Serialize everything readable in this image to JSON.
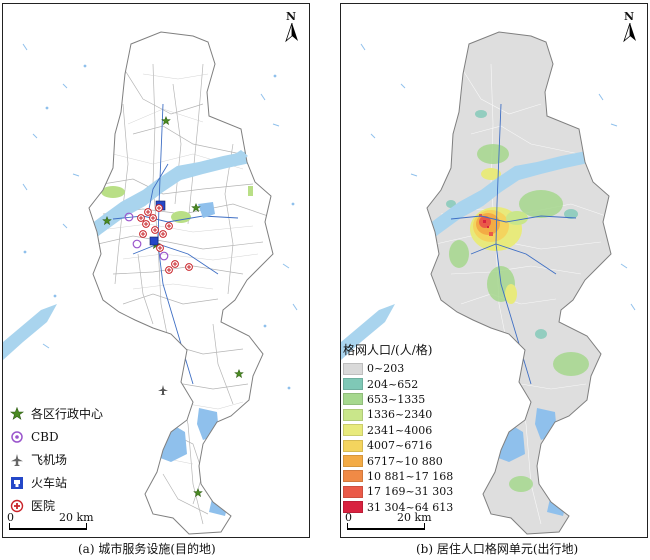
{
  "north_label": "N",
  "panel_a": {
    "caption": "(a) 城市服务设施(目的地)",
    "legend": [
      {
        "label": "各区行政中心",
        "icon": "star-icon",
        "color": "#4a8a22"
      },
      {
        "label": "CBD",
        "icon": "cbd-circle-icon",
        "color": "#9a55cc"
      },
      {
        "label": "飞机场",
        "icon": "airplane-icon",
        "color": "#666666"
      },
      {
        "label": "火车站",
        "icon": "train-station-icon",
        "color": "#2447c8"
      },
      {
        "label": "医院",
        "icon": "hospital-cross-icon",
        "color": "#c9242a"
      }
    ]
  },
  "panel_b": {
    "caption": "(b) 居住人口格网单元(出行地)",
    "legend_title": "格网人口/(人/格)",
    "classes": [
      {
        "label": "0~203",
        "color": "#d9d9d9"
      },
      {
        "label": "204~652",
        "color": "#7fc8b6"
      },
      {
        "label": "653~1335",
        "color": "#a6d88e"
      },
      {
        "label": "1336~2340",
        "color": "#c9e68a"
      },
      {
        "label": "2341~4006",
        "color": "#e8ea7c"
      },
      {
        "label": "4007~6716",
        "color": "#f4d45e"
      },
      {
        "label": "6717~10 880",
        "color": "#f3ab45"
      },
      {
        "label": "10 881~17 168",
        "color": "#f08a46"
      },
      {
        "label": "17 169~31 303",
        "color": "#ea5a48"
      },
      {
        "label": "31 304~64 613",
        "color": "#d8223f"
      }
    ]
  },
  "scale": {
    "start": "0",
    "end": "20 km"
  },
  "colors": {
    "water": "#8fc0ec",
    "river": "#a9d4ee",
    "boundary": "#7f7f7f",
    "road": "#a6a6a6",
    "metro": "#3f6fc4",
    "green": "#b9df86",
    "land": "#e0e0e0"
  }
}
